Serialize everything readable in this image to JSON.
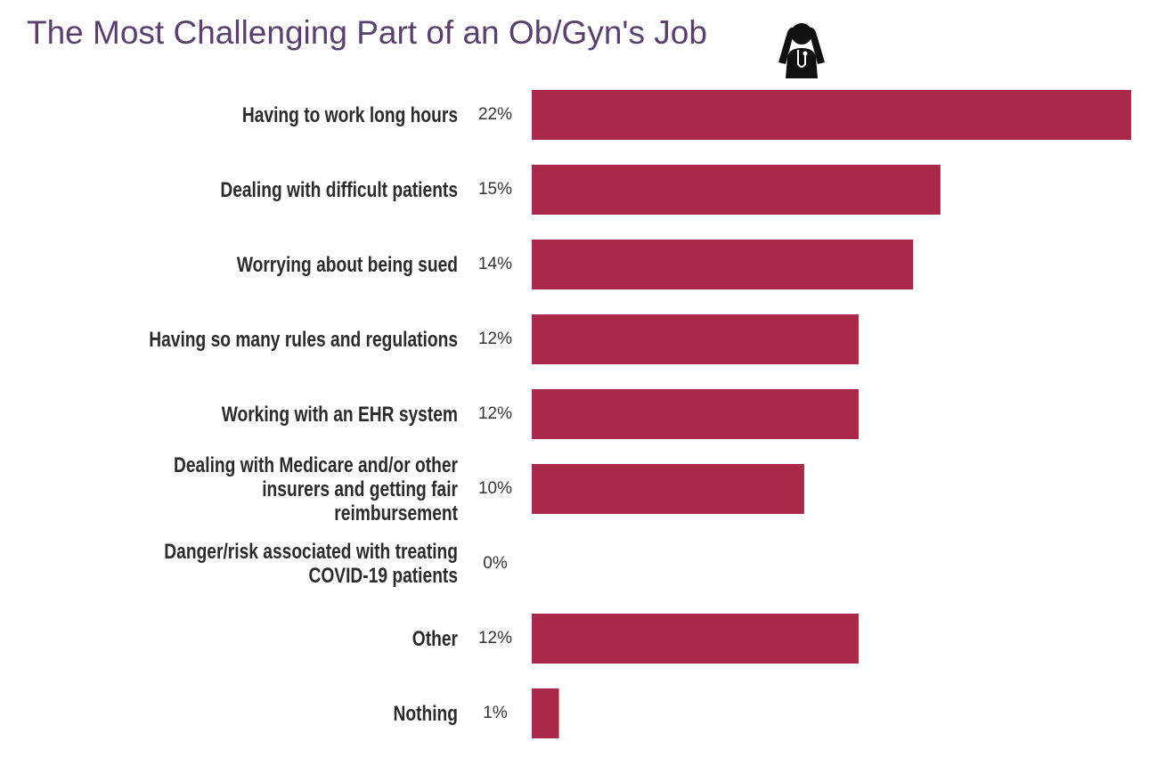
{
  "chart_data": {
    "type": "hbar",
    "title": "The Most Challenging Part of an Ob/Gyn's Job",
    "categories": [
      "Having to work long hours",
      "Dealing with difficult patients",
      "Worrying about being sued",
      "Having so many rules and regulations",
      "Working with an EHR system",
      "Dealing with Medicare and/or other\ninsurers and getting fair\nreimbursement",
      "Danger/risk associated with treating\nCOVID-19 patients",
      "Other",
      "Nothing"
    ],
    "values": [
      22,
      15,
      14,
      12,
      12,
      10,
      0,
      12,
      1
    ],
    "value_labels": [
      "22%",
      "15%",
      "14%",
      "12%",
      "12%",
      "10%",
      "0%",
      "12%",
      "1%"
    ],
    "color": "#a8294a"
  }
}
